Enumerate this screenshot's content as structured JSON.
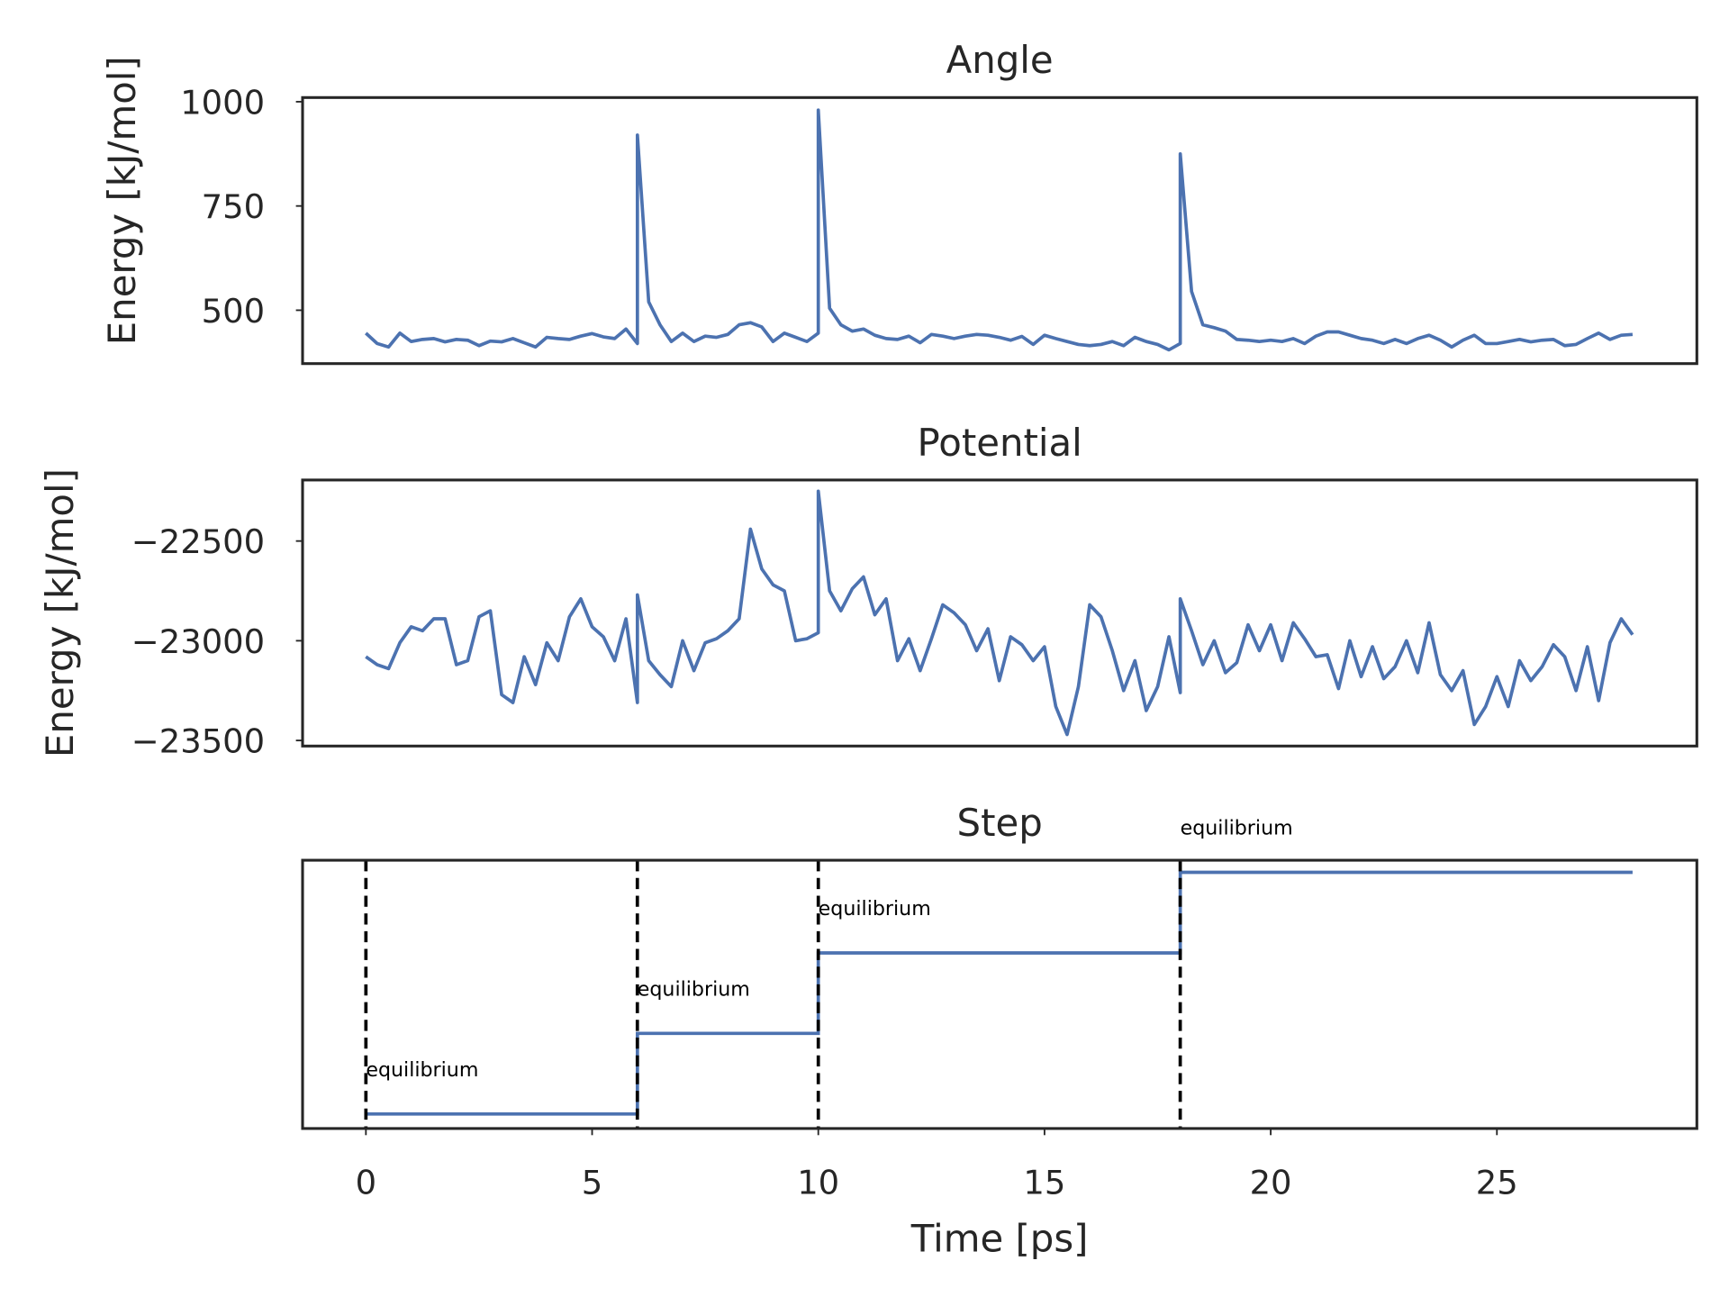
{
  "chart_data": [
    {
      "type": "line",
      "title": "Angle",
      "ylabel": "Energy [kJ/mol]",
      "color": "#4c72b0",
      "xlim": [
        -1.4,
        29.42
      ],
      "ylim": [
        372,
        1010
      ],
      "yticks": [
        500,
        750,
        1000
      ],
      "x": [
        0,
        0.25,
        0.5,
        0.75,
        1,
        1.25,
        1.5,
        1.75,
        2,
        2.25,
        2.5,
        2.75,
        3,
        3.25,
        3.5,
        3.75,
        4,
        4.25,
        4.5,
        4.75,
        5,
        5.25,
        5.5,
        5.75,
        6,
        6,
        6.25,
        6.5,
        6.75,
        7,
        7.25,
        7.5,
        7.75,
        8,
        8.25,
        8.5,
        8.75,
        9,
        9.25,
        9.5,
        9.75,
        10,
        10,
        10.25,
        10.5,
        10.75,
        11,
        11.25,
        11.5,
        11.75,
        12,
        12.25,
        12.5,
        12.75,
        13,
        13.25,
        13.5,
        13.75,
        14,
        14.25,
        14.5,
        14.75,
        15,
        15.25,
        15.5,
        15.75,
        16,
        16.25,
        16.5,
        16.75,
        17,
        17.25,
        17.5,
        17.75,
        18,
        18,
        18.25,
        18.5,
        18.75,
        19,
        19.25,
        19.5,
        19.75,
        20,
        20.25,
        20.5,
        20.75,
        21,
        21.25,
        21.5,
        21.75,
        22,
        22.25,
        22.5,
        22.75,
        23,
        23.25,
        23.5,
        23.75,
        24,
        24.25,
        24.5,
        24.75,
        25,
        25.25,
        25.5,
        25.75,
        26,
        26.25,
        26.5,
        26.75,
        27,
        27.25,
        27.5,
        27.75,
        28
      ],
      "values": [
        445,
        420,
        412,
        445,
        425,
        430,
        432,
        424,
        430,
        428,
        415,
        426,
        424,
        432,
        422,
        412,
        435,
        432,
        430,
        438,
        444,
        436,
        432,
        455,
        420,
        920,
        520,
        465,
        425,
        445,
        425,
        438,
        435,
        442,
        465,
        470,
        460,
        425,
        445,
        435,
        425,
        445,
        980,
        505,
        465,
        450,
        455,
        440,
        432,
        430,
        438,
        422,
        442,
        438,
        432,
        438,
        442,
        440,
        435,
        428,
        437,
        418,
        440,
        432,
        425,
        418,
        415,
        418,
        425,
        415,
        435,
        425,
        418,
        405,
        420,
        875,
        545,
        465,
        458,
        450,
        430,
        428,
        425,
        428,
        425,
        432,
        420,
        438,
        448,
        448,
        440,
        432,
        428,
        420,
        430,
        420,
        432,
        440,
        428,
        412,
        428,
        440,
        420,
        420,
        425,
        430,
        424,
        428,
        430,
        415,
        418,
        432,
        445,
        430,
        440,
        442
      ]
    },
    {
      "type": "line",
      "title": "Potential",
      "ylabel": "Energy [kJ/mol]",
      "color": "#4c72b0",
      "xlim": [
        -1.4,
        29.42
      ],
      "ylim": [
        -23528,
        -22194
      ],
      "yticks": [
        {
          "value": -22500,
          "label": "−22500"
        },
        {
          "value": -23000,
          "label": "−23000"
        },
        {
          "value": -23500,
          "label": "−23500"
        }
      ],
      "x": [
        0,
        0.25,
        0.5,
        0.75,
        1,
        1.25,
        1.5,
        1.75,
        2,
        2.25,
        2.5,
        2.75,
        3,
        3.25,
        3.5,
        3.75,
        4,
        4.25,
        4.5,
        4.75,
        5,
        5.25,
        5.5,
        5.75,
        6,
        6,
        6.25,
        6.5,
        6.75,
        7,
        7.25,
        7.5,
        7.75,
        8,
        8.25,
        8.5,
        8.75,
        9,
        9.25,
        9.5,
        9.75,
        10,
        10,
        10.25,
        10.5,
        10.75,
        11,
        11.25,
        11.5,
        11.75,
        12,
        12.25,
        12.5,
        12.75,
        13,
        13.25,
        13.5,
        13.75,
        14,
        14.25,
        14.5,
        14.75,
        15,
        15.25,
        15.5,
        15.75,
        16,
        16.25,
        16.5,
        16.75,
        17,
        17.25,
        17.5,
        17.75,
        18,
        18,
        18.25,
        18.5,
        18.75,
        19,
        19.25,
        19.5,
        19.75,
        20,
        20.25,
        20.5,
        20.75,
        21,
        21.25,
        21.5,
        21.75,
        22,
        22.25,
        22.5,
        22.75,
        23,
        23.25,
        23.5,
        23.75,
        24,
        24.25,
        24.5,
        24.75,
        25,
        25.25,
        25.5,
        25.75,
        26,
        26.25,
        26.5,
        26.75,
        27,
        27.25,
        27.5,
        27.75,
        28
      ],
      "values": [
        -23080,
        -23120,
        -23140,
        -23010,
        -22930,
        -22950,
        -22890,
        -22890,
        -23120,
        -23100,
        -22880,
        -22850,
        -23270,
        -23310,
        -23080,
        -23220,
        -23010,
        -23100,
        -22880,
        -22790,
        -22930,
        -22980,
        -23100,
        -22890,
        -23310,
        -22770,
        -23100,
        -23170,
        -23230,
        -23000,
        -23150,
        -23010,
        -22990,
        -22950,
        -22890,
        -22440,
        -22640,
        -22720,
        -22750,
        -23000,
        -22990,
        -22960,
        -22250,
        -22750,
        -22850,
        -22740,
        -22680,
        -22870,
        -22790,
        -23100,
        -22990,
        -23150,
        -22990,
        -22820,
        -22860,
        -22920,
        -23050,
        -22940,
        -23200,
        -22980,
        -23020,
        -23100,
        -23030,
        -23330,
        -23470,
        -23230,
        -22820,
        -22880,
        -23050,
        -23250,
        -23100,
        -23350,
        -23230,
        -22980,
        -23260,
        -22790,
        -22950,
        -23120,
        -23000,
        -23160,
        -23110,
        -22920,
        -23050,
        -22920,
        -23100,
        -22910,
        -22990,
        -23080,
        -23070,
        -23240,
        -23000,
        -23180,
        -23030,
        -23190,
        -23130,
        -23000,
        -23160,
        -22910,
        -23170,
        -23250,
        -23150,
        -23420,
        -23330,
        -23180,
        -23330,
        -23100,
        -23200,
        -23130,
        -23020,
        -23080,
        -23250,
        -23030,
        -23300,
        -23010,
        -22890,
        -22970
      ]
    },
    {
      "type": "step",
      "title": "Step",
      "xlabel": "Time [ps]",
      "color": "#4c72b0",
      "xlim": [
        -1.4,
        29.42
      ],
      "xticks": [
        0,
        5,
        10,
        15,
        20,
        25
      ],
      "ylim": [
        -0.18,
        3.15
      ],
      "x": [
        0,
        6,
        6,
        10,
        10,
        18,
        18,
        28
      ],
      "values": [
        0,
        0,
        1,
        1,
        2,
        2,
        3,
        3
      ],
      "vlines": [
        0,
        6,
        10,
        18
      ],
      "annotations": [
        {
          "text": "equilibrium",
          "x": 0,
          "y": 0.55
        },
        {
          "text": "equilibrium",
          "x": 6,
          "y": 1.55
        },
        {
          "text": "equilibrium",
          "x": 10,
          "y": 2.55
        },
        {
          "text": "equilibrium",
          "x": 18,
          "y": 3.55
        }
      ]
    }
  ]
}
